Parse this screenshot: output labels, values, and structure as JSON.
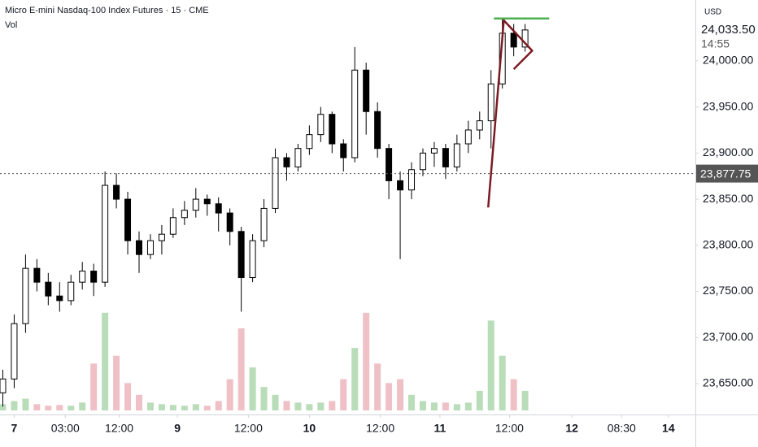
{
  "chart_data": {
    "type": "candlestick",
    "title": "Micro E-mini Nasdaq-100 Index Futures · 15 · CME",
    "y_unit": "USD",
    "x": [
      2,
      10,
      18,
      26,
      34,
      42,
      50,
      58,
      66,
      74,
      82,
      90,
      98,
      106,
      114,
      122,
      130,
      138,
      146,
      154,
      162,
      170,
      178,
      186,
      194,
      202,
      210,
      218,
      226,
      234,
      242,
      250,
      258,
      266,
      274,
      282,
      290,
      298,
      306,
      314,
      322,
      330,
      338,
      346,
      354,
      362,
      370
    ],
    "open": [
      23640,
      23655,
      23715,
      23775,
      23760,
      23745,
      23740,
      23760,
      23772,
      23760,
      23865,
      23850,
      23805,
      23790,
      23805,
      23812,
      23830,
      23838,
      23850,
      23845,
      23835,
      23815,
      23765,
      23805,
      23840,
      23895,
      23885,
      23905,
      23920,
      23942,
      23910,
      23895,
      23990,
      23945,
      23905,
      23870,
      23860,
      23882,
      23900,
      23905,
      23885,
      23910,
      23925,
      23935,
      23975,
      24030,
      24015
    ],
    "high": [
      23665,
      23725,
      23790,
      23785,
      23770,
      23760,
      23768,
      23782,
      23780,
      23880,
      23878,
      23858,
      23815,
      23812,
      23822,
      23840,
      23848,
      23862,
      23855,
      23852,
      23840,
      23820,
      23812,
      23850,
      23905,
      23900,
      23910,
      23930,
      23950,
      23945,
      23915,
      24015,
      23998,
      23955,
      23910,
      23880,
      23890,
      23905,
      23912,
      23910,
      23920,
      23935,
      23945,
      23990,
      24045,
      24040,
      24040
    ],
    "low": [
      23625,
      23645,
      23705,
      23750,
      23735,
      23728,
      23735,
      23752,
      23745,
      23755,
      23840,
      23790,
      23770,
      23785,
      23790,
      23808,
      23822,
      23830,
      23832,
      23815,
      23800,
      23728,
      23760,
      23798,
      23835,
      23870,
      23880,
      23898,
      23912,
      23900,
      23880,
      23890,
      23920,
      23895,
      23850,
      23785,
      23850,
      23875,
      23885,
      23872,
      23880,
      23900,
      23915,
      23905,
      23970,
      24005,
      24010
    ],
    "close": [
      23655,
      23715,
      23775,
      23760,
      23745,
      23740,
      23760,
      23772,
      23760,
      23865,
      23850,
      23805,
      23790,
      23805,
      23812,
      23830,
      23838,
      23850,
      23845,
      23835,
      23815,
      23765,
      23805,
      23840,
      23895,
      23885,
      23905,
      23920,
      23942,
      23910,
      23895,
      23990,
      23945,
      23905,
      23870,
      23860,
      23882,
      23900,
      23905,
      23885,
      23910,
      23925,
      23935,
      23975,
      24030,
      24015,
      24033.5
    ],
    "up_color": "#ffffff",
    "down_color": "#000000",
    "volume": {
      "name": "Vol",
      "up_color": "#b9dcb9",
      "down_color": "#efc0c6",
      "vlim": [
        0,
        130
      ],
      "values": [
        8,
        12,
        15,
        8,
        6,
        7,
        6,
        10,
        60,
        125,
        70,
        35,
        20,
        10,
        8,
        7,
        6,
        8,
        6,
        12,
        40,
        105,
        55,
        30,
        20,
        12,
        10,
        8,
        10,
        12,
        40,
        80,
        125,
        60,
        35,
        40,
        20,
        12,
        10,
        10,
        8,
        10,
        25,
        115,
        70,
        40,
        25
      ]
    },
    "xlim": [
      0,
      490
    ],
    "xticks": [
      {
        "value": 10,
        "label": "7"
      },
      {
        "value": 46,
        "label": "03:00"
      },
      {
        "value": 84,
        "label": "12:00"
      },
      {
        "value": 125,
        "label": "9"
      },
      {
        "value": 175,
        "label": "12:00"
      },
      {
        "value": 218,
        "label": "10"
      },
      {
        "value": 268,
        "label": "12:00"
      },
      {
        "value": 310,
        "label": "11"
      },
      {
        "value": 359,
        "label": "12:00"
      },
      {
        "value": 403,
        "label": "12"
      },
      {
        "value": 438,
        "label": "08:30"
      },
      {
        "value": 471,
        "label": "14"
      }
    ],
    "ylim": [
      23616.5,
      24066
    ],
    "yticks": [
      {
        "value": 23650,
        "label": "23,650.00"
      },
      {
        "value": 23700,
        "label": "23,700.00"
      },
      {
        "value": 23750,
        "label": "23,750.00"
      },
      {
        "value": 23800,
        "label": "23,800.00"
      },
      {
        "value": 23850,
        "label": "23,850.00"
      },
      {
        "value": 23900,
        "label": "23,900.00"
      },
      {
        "value": 23950,
        "label": "23,950.00"
      },
      {
        "value": 24000,
        "label": "24,000.00"
      }
    ],
    "grid": false,
    "last_price": {
      "value": 24033.5,
      "label": "24,033.50",
      "countdown": "14:55"
    },
    "reference_line": {
      "value": 23877.75,
      "label": "23,877.75",
      "color": "#555555"
    },
    "drawings": [
      {
        "type": "line",
        "color": "#4caf50",
        "x": [
          348,
          387
        ],
        "y": [
          24046,
          24046
        ]
      },
      {
        "type": "polyline",
        "color": "#7b1a22",
        "x": [
          344,
          355,
          375,
          362
        ],
        "y": [
          23841,
          24044,
          24011,
          23991
        ]
      }
    ]
  }
}
